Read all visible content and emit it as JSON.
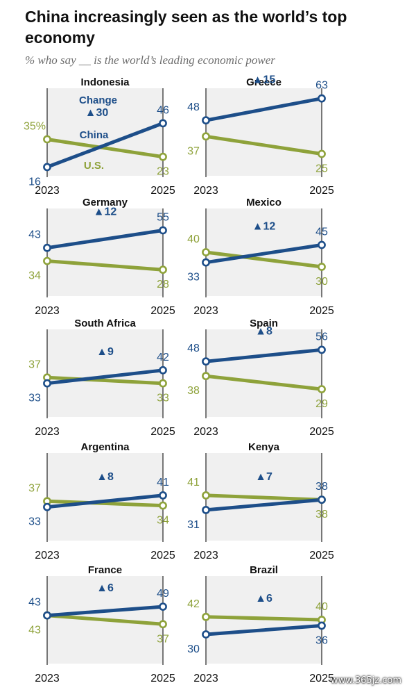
{
  "title": "China increasingly seen as the world’s top economy",
  "subtitle": "% who say __ is the world’s leading economic power",
  "colors": {
    "china": "#1d4e89",
    "us": "#8ea23a",
    "panel_bg": "#f0f0f0",
    "axis": "#333333"
  },
  "legend_labels": {
    "change": "Change",
    "china": "China",
    "us": "U.S."
  },
  "watermark": "www.365jz.com",
  "chart_data": [
    {
      "type": "line",
      "title": "Indonesia",
      "x": [
        "2023",
        "2025"
      ],
      "ylim": [
        10,
        70
      ],
      "series": [
        {
          "name": "China",
          "values": [
            16,
            46
          ]
        },
        {
          "name": "U.S.",
          "values": [
            35,
            23
          ]
        }
      ],
      "labels": {
        "china": [
          "16",
          "46"
        ],
        "us": [
          "35%",
          "23"
        ]
      },
      "change": "▲30"
    },
    {
      "type": "line",
      "title": "Greece",
      "x": [
        "2023",
        "2025"
      ],
      "ylim": [
        10,
        70
      ],
      "series": [
        {
          "name": "China",
          "values": [
            48,
            63
          ]
        },
        {
          "name": "U.S.",
          "values": [
            37,
            25
          ]
        }
      ],
      "labels": {
        "china": [
          "48",
          "63"
        ],
        "us": [
          "37",
          "25"
        ]
      },
      "change": "▲15"
    },
    {
      "type": "line",
      "title": "Germany",
      "x": [
        "2023",
        "2025"
      ],
      "ylim": [
        10,
        70
      ],
      "series": [
        {
          "name": "China",
          "values": [
            43,
            55
          ]
        },
        {
          "name": "U.S.",
          "values": [
            34,
            28
          ]
        }
      ],
      "labels": {
        "china": [
          "43",
          "55"
        ],
        "us": [
          "34",
          "28"
        ]
      },
      "change": "▲12"
    },
    {
      "type": "line",
      "title": "Mexico",
      "x": [
        "2023",
        "2025"
      ],
      "ylim": [
        10,
        70
      ],
      "series": [
        {
          "name": "China",
          "values": [
            33,
            45
          ]
        },
        {
          "name": "U.S.",
          "values": [
            40,
            30
          ]
        }
      ],
      "labels": {
        "china": [
          "33",
          "45"
        ],
        "us": [
          "40",
          "30"
        ]
      },
      "change": "▲12"
    },
    {
      "type": "line",
      "title": "South Africa",
      "x": [
        "2023",
        "2025"
      ],
      "ylim": [
        10,
        70
      ],
      "series": [
        {
          "name": "China",
          "values": [
            33,
            42
          ]
        },
        {
          "name": "U.S.",
          "values": [
            37,
            33
          ]
        }
      ],
      "labels": {
        "china": [
          "33",
          "42"
        ],
        "us": [
          "37",
          "33"
        ]
      },
      "change": "▲9"
    },
    {
      "type": "line",
      "title": "Spain",
      "x": [
        "2023",
        "2025"
      ],
      "ylim": [
        10,
        70
      ],
      "series": [
        {
          "name": "China",
          "values": [
            48,
            56
          ]
        },
        {
          "name": "U.S.",
          "values": [
            38,
            29
          ]
        }
      ],
      "labels": {
        "china": [
          "48",
          "56"
        ],
        "us": [
          "38",
          "29"
        ]
      },
      "change": "▲8"
    },
    {
      "type": "line",
      "title": "Argentina",
      "x": [
        "2023",
        "2025"
      ],
      "ylim": [
        10,
        70
      ],
      "series": [
        {
          "name": "China",
          "values": [
            33,
            41
          ]
        },
        {
          "name": "U.S.",
          "values": [
            37,
            34
          ]
        }
      ],
      "labels": {
        "china": [
          "33",
          "41"
        ],
        "us": [
          "37",
          "34"
        ]
      },
      "change": "▲8"
    },
    {
      "type": "line",
      "title": "Kenya",
      "x": [
        "2023",
        "2025"
      ],
      "ylim": [
        10,
        70
      ],
      "series": [
        {
          "name": "China",
          "values": [
            31,
            38
          ]
        },
        {
          "name": "U.S.",
          "values": [
            41,
            38
          ]
        }
      ],
      "labels": {
        "china": [
          "31",
          "38"
        ],
        "us": [
          "41",
          "38"
        ]
      },
      "change": "▲7"
    },
    {
      "type": "line",
      "title": "France",
      "x": [
        "2023",
        "2025"
      ],
      "ylim": [
        10,
        70
      ],
      "series": [
        {
          "name": "China",
          "values": [
            43,
            49
          ]
        },
        {
          "name": "U.S.",
          "values": [
            43,
            37
          ]
        }
      ],
      "labels": {
        "china": [
          "43",
          "49"
        ],
        "us": [
          "43",
          "37"
        ]
      },
      "change": "▲6"
    },
    {
      "type": "line",
      "title": "Brazil",
      "x": [
        "2023",
        "2025"
      ],
      "ylim": [
        10,
        70
      ],
      "series": [
        {
          "name": "China",
          "values": [
            30,
            36
          ]
        },
        {
          "name": "U.S.",
          "values": [
            42,
            40
          ]
        }
      ],
      "labels": {
        "china": [
          "30",
          "36"
        ],
        "us": [
          "42",
          "40"
        ]
      },
      "change": "▲6"
    }
  ]
}
